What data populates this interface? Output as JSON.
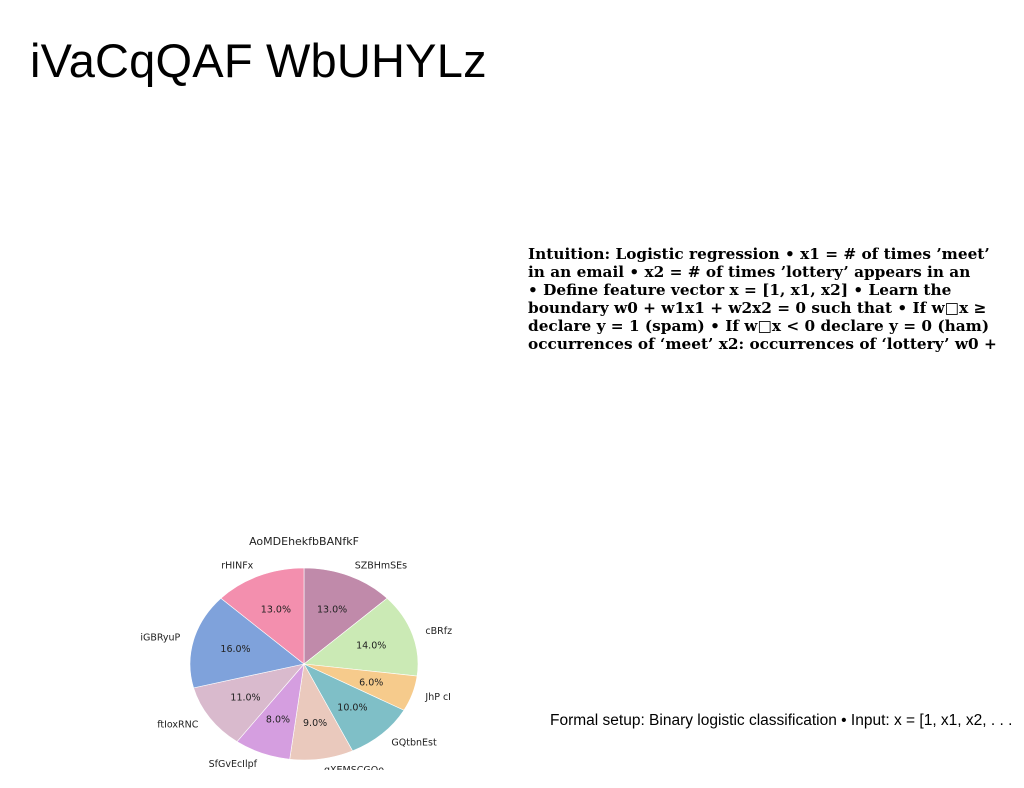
{
  "slide": {
    "title": "iVaCqQAF WbUHYLz",
    "body_lines": [
      "Intuition: Logistic regression • x1 = # of times ’meet’",
      "in an email • x2 = # of times ’lottery’ appears in an",
      "• Define feature vector x = [1, x1, x2] • Learn the",
      "boundary w0 + w1x1 + w2x2 = 0 such that • If w□x ≥",
      "declare y = 1 (spam) • If w□x < 0 declare y = 0 (ham)",
      "occurrences of ‘meet’ x2: occurrences of ‘lottery’ w0 +"
    ],
    "footer": "Formal setup: Binary logistic classification • Input: x = [1, x1, x2, . . ."
  },
  "chart_data": {
    "type": "pie",
    "title": "AoMDEhekfbBANfkF",
    "categories": [
      "SZBHmSEs",
      "cBRfz",
      "JhP cI",
      "GQtbnEst",
      "qXEMSCGQo",
      "SfGvEcIlpf",
      "ftIoxRNC",
      "iGBRyuP",
      "rHINFx"
    ],
    "values": [
      13.0,
      14.0,
      6.0,
      10.0,
      9.0,
      8.0,
      11.0,
      16.0,
      13.0
    ],
    "labels": [
      "13.0%",
      "14.0%",
      "6.0%",
      "10.0%",
      "9.0%",
      "8.0%",
      "11.0%",
      "16.0%",
      "13.0%"
    ],
    "colors": [
      "#c08aaa",
      "#cbeab5",
      "#f6cb8c",
      "#7fbfc7",
      "#eac9bd",
      "#d59ee0",
      "#d9bacd",
      "#7fa2db",
      "#f38fae"
    ],
    "start_angle_deg": 90,
    "direction": "clockwise"
  }
}
